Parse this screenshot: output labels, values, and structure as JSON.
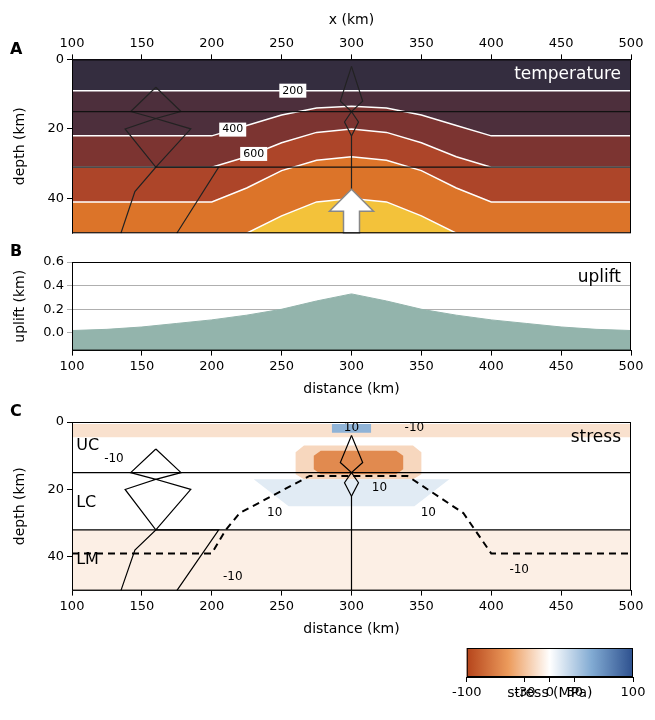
{
  "chart_data": [
    {
      "letter": "A",
      "type": "contour",
      "title": "temperature",
      "xlabel": "x (km)",
      "ylabel": "depth (km)",
      "xlim": [
        100,
        500
      ],
      "xticks": [
        100,
        150,
        200,
        250,
        300,
        350,
        400,
        450,
        500
      ],
      "ylim": [
        0,
        50
      ],
      "yticks": [
        0,
        20,
        40
      ],
      "color": "#342d3f",
      "x": [
        100,
        150,
        200,
        225,
        250,
        275,
        300,
        325,
        350,
        375,
        400,
        450,
        500
      ],
      "contours": [
        {
          "label": "200",
          "label_x": 258,
          "color": "#4d2f3c",
          "depth": [
            9,
            9,
            9,
            9,
            9,
            9,
            9,
            9,
            9,
            9,
            9,
            9,
            9
          ]
        },
        {
          "label": "400",
          "label_x": 215,
          "color": "#7c3431",
          "depth": [
            22,
            22,
            22,
            19,
            16,
            14,
            13.5,
            14,
            16,
            19,
            22,
            22,
            22
          ]
        },
        {
          "label": "600",
          "label_x": 230,
          "color": "#ad4529",
          "depth": [
            31,
            31,
            31,
            28,
            24,
            21,
            20,
            21,
            24,
            28,
            31,
            31,
            31
          ]
        },
        {
          "color": "#dc7429",
          "depth": [
            41,
            41,
            41,
            37,
            32,
            29,
            28,
            29,
            32,
            37,
            41,
            41,
            41
          ]
        },
        {
          "color": "#f3c23a",
          "depth": [
            50,
            50,
            50,
            50,
            45,
            41,
            40,
            41,
            45,
            50,
            50,
            50,
            50
          ]
        }
      ],
      "lines": [
        {
          "x": [
            100,
            500
          ],
          "depth": [
            15,
            15
          ],
          "color": "#111111",
          "line_style": "solid"
        },
        {
          "x": [
            100,
            500
          ],
          "depth": [
            31,
            31
          ],
          "color": "#111111",
          "line_style": "solid"
        },
        {
          "x": [
            160,
            178,
            160,
            185,
            160,
            205,
            175
          ],
          "depth": [
            8,
            15,
            17,
            20,
            31,
            31,
            50
          ],
          "color": "#222222",
          "line_style": "solid"
        },
        {
          "x": [
            160,
            142,
            160,
            138,
            160,
            145,
            135
          ],
          "depth": [
            8,
            15,
            17,
            20,
            31,
            38,
            50
          ],
          "color": "#222222",
          "line_style": "solid"
        },
        {
          "x": [
            300,
            308,
            300,
            305,
            300,
            300
          ],
          "depth": [
            2,
            12,
            15,
            18,
            22,
            50
          ],
          "color": "#222222",
          "line_style": "solid"
        },
        {
          "x": [
            300,
            292,
            300,
            295,
            300
          ],
          "depth": [
            2,
            12,
            15,
            18,
            22
          ],
          "color": "#222222",
          "line_style": "solid"
        }
      ]
    },
    {
      "letter": "B",
      "type": "area",
      "title": "uplift",
      "xlabel": "distance (km)",
      "ylabel": "uplift (km)",
      "xlim": [
        100,
        500
      ],
      "xticks": [
        100,
        150,
        200,
        250,
        300,
        350,
        400,
        450,
        500
      ],
      "ylim": [
        -0.15,
        0.6
      ],
      "yticks": [
        {
          "value": 0,
          "label": "0.0"
        },
        0.2,
        0.4,
        0.6
      ],
      "grid": true,
      "color": "#93b4ac",
      "x": [
        100,
        125,
        150,
        175,
        200,
        225,
        250,
        275,
        300,
        325,
        350,
        375,
        400,
        425,
        450,
        475,
        500
      ],
      "values": [
        0.02,
        0.03,
        0.05,
        0.08,
        0.11,
        0.15,
        0.2,
        0.27,
        0.33,
        0.27,
        0.2,
        0.15,
        0.11,
        0.08,
        0.05,
        0.03,
        0.02
      ]
    },
    {
      "letter": "C",
      "type": "field",
      "title": "stress",
      "xlabel": "distance (km)",
      "ylabel": "depth (km)",
      "xlim": [
        100,
        500
      ],
      "xticks": [
        100,
        150,
        200,
        250,
        300,
        350,
        400,
        450,
        500
      ],
      "ylim": [
        0,
        50
      ],
      "yticks": [
        0,
        20,
        40
      ],
      "regions": [
        {
          "stress": -8,
          "x": [
            100,
            500,
            500,
            100,
            100
          ],
          "depth": [
            32,
            32,
            50,
            50,
            32
          ]
        },
        {
          "stress": -15,
          "x": [
            100,
            500,
            500,
            100,
            100
          ],
          "depth": [
            0.6,
            0.6,
            4.5,
            4.5,
            0.6
          ]
        },
        {
          "stress": 45,
          "x": [
            286,
            314,
            314,
            286,
            286
          ],
          "depth": [
            0.6,
            0.6,
            3.2,
            3.2,
            0.6
          ]
        },
        {
          "stress": -20,
          "x": [
            266,
            344,
            350,
            350,
            344,
            266,
            260,
            260,
            266
          ],
          "depth": [
            7,
            7,
            9,
            15.5,
            17,
            17,
            15.5,
            9,
            7
          ]
        },
        {
          "stress": -60,
          "x": [
            278,
            332,
            337,
            337,
            332,
            278,
            273,
            273,
            278
          ],
          "depth": [
            8.5,
            8.5,
            10,
            14,
            15.5,
            15.5,
            14,
            10,
            8.5
          ]
        },
        {
          "stress": 12,
          "x": [
            230,
            370,
            345,
            255,
            230
          ],
          "depth": [
            17,
            17,
            25,
            25,
            17
          ]
        }
      ],
      "lines": [
        {
          "x": [
            100,
            500
          ],
          "depth": [
            15,
            15
          ],
          "color": "#000000",
          "line_style": "solid"
        },
        {
          "x": [
            100,
            500
          ],
          "depth": [
            32,
            32
          ],
          "color": "#000000",
          "line_style": "solid"
        },
        {
          "x": [
            100,
            200,
            210,
            220,
            270,
            340,
            380,
            400,
            500
          ],
          "depth": [
            39,
            39,
            32,
            27,
            16,
            16,
            27,
            39,
            39
          ],
          "color": "#000000",
          "line_style": "dashed"
        },
        {
          "x": [
            160,
            178,
            160,
            185,
            160,
            205,
            175
          ],
          "depth": [
            8,
            15,
            17,
            20,
            32,
            32,
            50
          ],
          "color": "#000000",
          "line_style": "solid"
        },
        {
          "x": [
            160,
            142,
            160,
            138,
            160,
            145,
            135
          ],
          "depth": [
            8,
            15,
            17,
            20,
            32,
            38,
            50
          ],
          "color": "#000000",
          "line_style": "solid"
        },
        {
          "x": [
            300,
            308,
            300,
            305,
            300,
            300
          ],
          "depth": [
            4,
            12,
            15,
            18,
            22,
            50
          ],
          "color": "#000000",
          "line_style": "solid"
        },
        {
          "x": [
            300,
            292,
            300,
            295,
            300
          ],
          "depth": [
            4,
            12,
            15,
            18,
            22
          ],
          "color": "#000000",
          "line_style": "solid"
        }
      ],
      "layer_labels": [
        {
          "text": "UC",
          "x": 103,
          "depth": 7
        },
        {
          "text": "LC",
          "x": 103,
          "depth": 24
        },
        {
          "text": "LM",
          "x": 103,
          "depth": 41
        }
      ],
      "annotations": [
        {
          "text": "10",
          "x": 300,
          "depth": 1.8
        },
        {
          "text": "-10",
          "x": 345,
          "depth": 1.8
        },
        {
          "text": "-10",
          "x": 130,
          "depth": 11
        },
        {
          "text": "10",
          "x": 320,
          "depth": 19.5
        },
        {
          "text": "10",
          "x": 245,
          "depth": 27
        },
        {
          "text": "10",
          "x": 355,
          "depth": 27
        },
        {
          "text": "-10",
          "x": 420,
          "depth": 44
        },
        {
          "text": "-10",
          "x": 215,
          "depth": 46
        }
      ],
      "colorbar": {
        "range": [
          -100,
          100
        ],
        "ticks": [
          -100,
          -30,
          0,
          30,
          100
        ],
        "label": "stress (MPa)",
        "colors": [
          "#b5441b",
          "#ec9b5c",
          "#ffffff",
          "#82abd3",
          "#2d508e"
        ]
      }
    }
  ]
}
